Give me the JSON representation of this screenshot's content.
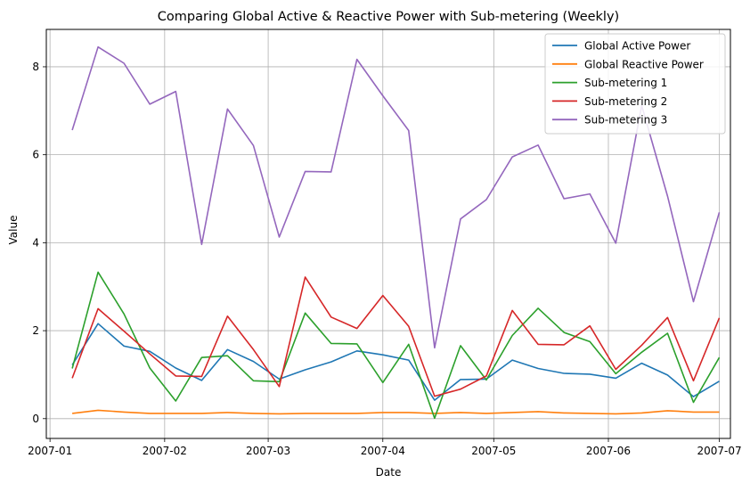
{
  "chart_data": {
    "type": "line",
    "title": "Comparing Global Active & Reactive Power with Sub-metering (Weekly)",
    "xlabel": "Date",
    "ylabel": "Value",
    "x_axis": {
      "type": "date",
      "range": [
        "2006-12-31",
        "2007-07-04"
      ]
    },
    "ylim": [
      -0.45,
      8.85
    ],
    "grid": true,
    "legend_position": "top-right",
    "x_ticks": [
      {
        "date": "2007-01-01",
        "label": "2007-01"
      },
      {
        "date": "2007-02-01",
        "label": "2007-02"
      },
      {
        "date": "2007-03-01",
        "label": "2007-03"
      },
      {
        "date": "2007-04-01",
        "label": "2007-04"
      },
      {
        "date": "2007-05-01",
        "label": "2007-05"
      },
      {
        "date": "2007-06-01",
        "label": "2007-06"
      },
      {
        "date": "2007-07-01",
        "label": "2007-07"
      }
    ],
    "y_ticks": [
      0,
      2,
      4,
      6,
      8
    ],
    "x": [
      "2007-01-07",
      "2007-01-14",
      "2007-01-21",
      "2007-01-28",
      "2007-02-04",
      "2007-02-11",
      "2007-02-18",
      "2007-02-25",
      "2007-03-04",
      "2007-03-11",
      "2007-03-18",
      "2007-03-25",
      "2007-04-01",
      "2007-04-08",
      "2007-04-15",
      "2007-04-22",
      "2007-04-29",
      "2007-05-06",
      "2007-05-13",
      "2007-05-20",
      "2007-05-27",
      "2007-06-03",
      "2007-06-10",
      "2007-06-17",
      "2007-06-24",
      "2007-07-01"
    ],
    "series": [
      {
        "name": "Global Active Power",
        "color": "#1f77b4",
        "values": [
          1.22,
          2.16,
          1.65,
          1.53,
          1.15,
          0.87,
          1.57,
          1.3,
          0.9,
          1.11,
          1.29,
          1.54,
          1.45,
          1.33,
          0.42,
          0.89,
          0.9,
          1.33,
          1.14,
          1.03,
          1.01,
          0.92,
          1.26,
          0.99,
          0.5,
          0.85
        ]
      },
      {
        "name": "Global Reactive Power",
        "color": "#ff7f0e",
        "values": [
          0.12,
          0.19,
          0.15,
          0.12,
          0.12,
          0.12,
          0.14,
          0.12,
          0.11,
          0.12,
          0.12,
          0.12,
          0.14,
          0.14,
          0.12,
          0.14,
          0.12,
          0.14,
          0.16,
          0.13,
          0.12,
          0.11,
          0.13,
          0.18,
          0.15,
          0.15
        ]
      },
      {
        "name": "Sub-metering 1",
        "color": "#2ca02c",
        "values": [
          1.14,
          3.33,
          2.38,
          1.15,
          0.4,
          1.39,
          1.43,
          0.86,
          0.84,
          2.4,
          1.71,
          1.7,
          0.82,
          1.69,
          0.01,
          1.66,
          0.88,
          1.89,
          2.51,
          1.96,
          1.75,
          1.02,
          1.51,
          1.94,
          0.37,
          1.39
        ]
      },
      {
        "name": "Sub-metering 2",
        "color": "#d62728",
        "values": [
          0.92,
          2.5,
          1.99,
          1.47,
          0.97,
          0.96,
          2.33,
          1.57,
          0.73,
          3.22,
          2.31,
          2.05,
          2.8,
          2.1,
          0.51,
          0.67,
          0.97,
          2.46,
          1.69,
          1.68,
          2.11,
          1.12,
          1.67,
          2.3,
          0.86,
          2.29
        ]
      },
      {
        "name": "Sub-metering 3",
        "color": "#9467bd",
        "values": [
          6.56,
          8.45,
          8.08,
          7.15,
          7.44,
          3.96,
          7.04,
          6.21,
          4.13,
          5.62,
          5.61,
          8.17,
          7.34,
          6.55,
          1.61,
          4.54,
          4.98,
          5.95,
          6.22,
          5.0,
          5.11,
          3.99,
          7.12,
          5.06,
          2.66,
          4.69
        ]
      }
    ]
  }
}
